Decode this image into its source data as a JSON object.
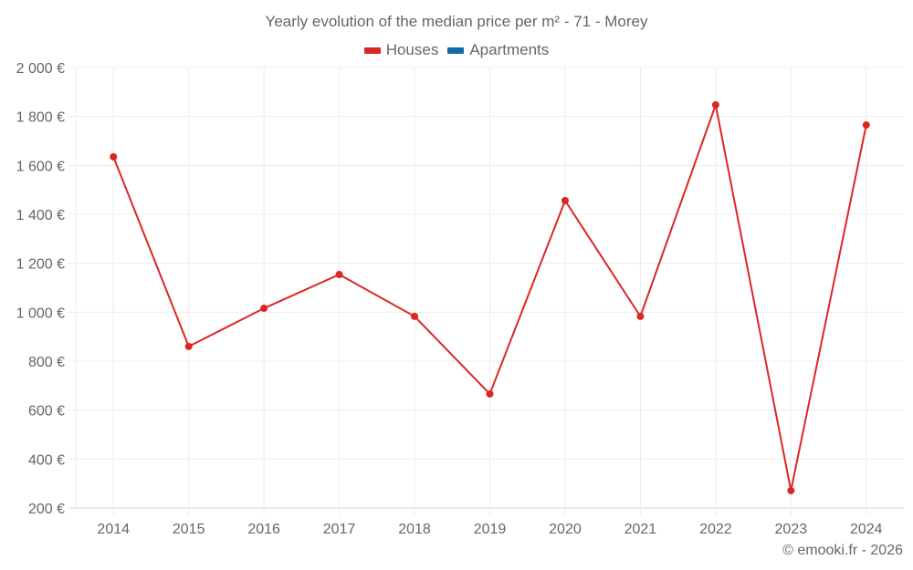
{
  "chart": {
    "title": "Yearly evolution of the median price per m² - 71 - Morey",
    "credit": "© emooki.fr - 2026",
    "legend": [
      {
        "label": "Houses",
        "color": "#dc2626"
      },
      {
        "label": "Apartments",
        "color": "#0e6ba8"
      }
    ]
  },
  "chart_data": {
    "type": "line",
    "title": "Yearly evolution of the median price per m² - 71 - Morey",
    "xlabel": "",
    "ylabel": "",
    "categories": [
      "2014",
      "2015",
      "2016",
      "2017",
      "2018",
      "2019",
      "2020",
      "2021",
      "2022",
      "2023",
      "2024"
    ],
    "series": [
      {
        "name": "Houses",
        "color": "#dc2626",
        "values": [
          1635,
          860,
          1016,
          1154,
          983,
          666,
          1456,
          983,
          1847,
          271,
          1765
        ]
      },
      {
        "name": "Apartments",
        "color": "#0e6ba8",
        "values": []
      }
    ],
    "yticks": [
      "200 €",
      "400 €",
      "600 €",
      "800 €",
      "1 000 €",
      "1 200 €",
      "1 400 €",
      "1 600 €",
      "1 800 €",
      "2 000 €"
    ],
    "ylim": [
      200,
      2000
    ],
    "grid": true,
    "legend_position": "top"
  }
}
